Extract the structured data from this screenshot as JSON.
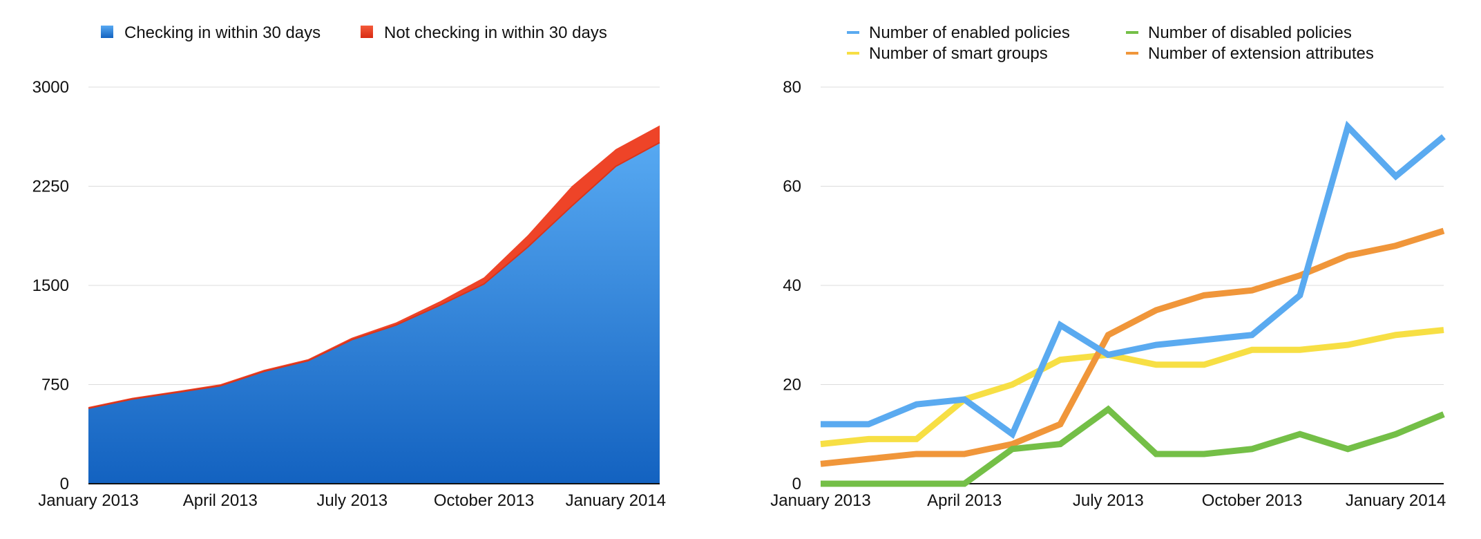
{
  "chart_data": [
    {
      "type": "area",
      "stacked": true,
      "x": [
        "January 2013",
        "February 2013",
        "March 2013",
        "April 2013",
        "May 2013",
        "June 2013",
        "July 2013",
        "August 2013",
        "September 2013",
        "October 2013",
        "November 2013",
        "December 2013",
        "January 2014",
        "February 2014"
      ],
      "x_tick_labels": [
        "January 2013",
        "April 2013",
        "July 2013",
        "October 2013",
        "January 2014"
      ],
      "series": [
        {
          "name": "Checking in within 30 days",
          "color": "#3d8ee0",
          "values": [
            570,
            640,
            690,
            740,
            850,
            930,
            1090,
            1200,
            1350,
            1510,
            1790,
            2100,
            2400,
            2580
          ]
        },
        {
          "name": "Not checking in within 30 days",
          "color": "#ee4428",
          "values": [
            10,
            10,
            10,
            12,
            12,
            12,
            15,
            20,
            30,
            50,
            90,
            150,
            130,
            130
          ]
        }
      ],
      "ylim": [
        0,
        3000
      ],
      "y_ticks": [
        0,
        750,
        1500,
        2250,
        3000
      ],
      "grid": true,
      "legend_position": "top-left"
    },
    {
      "type": "line",
      "x": [
        "January 2013",
        "February 2013",
        "March 2013",
        "April 2013",
        "May 2013",
        "June 2013",
        "July 2013",
        "August 2013",
        "September 2013",
        "October 2013",
        "November 2013",
        "December 2013",
        "January 2014",
        "February 2014"
      ],
      "x_tick_labels": [
        "January 2013",
        "April 2013",
        "July 2013",
        "October 2013",
        "January 2014"
      ],
      "series": [
        {
          "name": "Number of enabled policies",
          "color": "#5aaaf0",
          "values": [
            12,
            12,
            16,
            17,
            10,
            32,
            26,
            28,
            29,
            30,
            38,
            72,
            62,
            70
          ]
        },
        {
          "name": "Number of disabled policies",
          "color": "#74bf47",
          "values": [
            0,
            0,
            0,
            0,
            7,
            8,
            15,
            6,
            6,
            7,
            10,
            7,
            10,
            14
          ]
        },
        {
          "name": "Number of smart groups",
          "color": "#f7df44",
          "values": [
            8,
            9,
            9,
            17,
            20,
            25,
            26,
            24,
            24,
            27,
            27,
            28,
            30,
            31
          ]
        },
        {
          "name": "Number of extension attributes",
          "color": "#f0963a",
          "values": [
            4,
            5,
            6,
            6,
            8,
            12,
            30,
            35,
            38,
            39,
            42,
            46,
            48,
            51
          ]
        }
      ],
      "ylim": [
        0,
        80
      ],
      "y_ticks": [
        0,
        20,
        40,
        60,
        80
      ],
      "grid": true,
      "legend_position": "top"
    }
  ]
}
